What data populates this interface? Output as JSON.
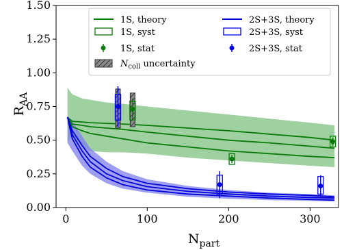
{
  "chart_data": {
    "type": "line",
    "xlabel": "N",
    "xlabel_sub": "part",
    "ylabel": "R",
    "ylabel_sub": "AA",
    "xlim": [
      -12,
      335
    ],
    "ylim": [
      0.0,
      1.5
    ],
    "xticks": [
      0,
      100,
      200,
      300
    ],
    "xtick_labels": [
      "0",
      "100",
      "200",
      "300"
    ],
    "yticks": [
      0.0,
      0.25,
      0.5,
      0.75,
      1.0,
      1.25,
      1.5
    ],
    "ytick_labels": [
      "0.00",
      "0.25",
      "0.50",
      "0.75",
      "1.00",
      "1.25",
      "1.50"
    ],
    "grid": false,
    "legend_position": "top-right",
    "legend": [
      {
        "label": "1S, theory",
        "kind": "line",
        "color": "#087a08"
      },
      {
        "label": "2S+3S, theory",
        "kind": "line",
        "color": "#0000dd"
      },
      {
        "label": "1S, syst",
        "kind": "box",
        "color": "#087a08"
      },
      {
        "label": "2S+3S, syst",
        "kind": "box",
        "color": "#0000dd"
      },
      {
        "label": "1S, stat",
        "kind": "point",
        "color": "#087a08"
      },
      {
        "label": "2S+3S, stat",
        "kind": "point",
        "color": "#0000dd"
      },
      {
        "label": "N",
        "label_sub": "coll",
        "label_tail": " uncertainty",
        "kind": "hatch",
        "color": "#555555"
      }
    ],
    "colors": {
      "green": "#087a08",
      "green_band": "#7fc07f",
      "blue": "#0000dd",
      "blue_band": "#7f7fee",
      "hatch": "#555555"
    },
    "theory": {
      "x": [
        2,
        8,
        20,
        30,
        50,
        70,
        100,
        150,
        200,
        250,
        300,
        330
      ],
      "1S": {
        "upper": [
          0.89,
          0.84,
          0.81,
          0.8,
          0.78,
          0.77,
          0.75,
          0.72,
          0.69,
          0.66,
          0.63,
          0.61
        ],
        "lower": [
          0.49,
          0.53,
          0.45,
          0.42,
          0.41,
          0.41,
          0.4,
          0.37,
          0.35,
          0.33,
          0.31,
          0.3
        ],
        "lines": [
          [
            0.67,
            0.64,
            0.635,
            0.63,
            0.625,
            0.62,
            0.61,
            0.59,
            0.57,
            0.545,
            0.52,
            0.5
          ],
          [
            0.67,
            0.62,
            0.61,
            0.6,
            0.59,
            0.58,
            0.56,
            0.53,
            0.5,
            0.48,
            0.455,
            0.44
          ],
          [
            0.67,
            0.6,
            0.57,
            0.55,
            0.53,
            0.51,
            0.48,
            0.45,
            0.42,
            0.4,
            0.38,
            0.37
          ]
        ]
      },
      "2S3S": {
        "upper": [
          0.68,
          0.64,
          0.53,
          0.44,
          0.34,
          0.27,
          0.21,
          0.16,
          0.13,
          0.11,
          0.1,
          0.09
        ],
        "lower": [
          0.48,
          0.42,
          0.31,
          0.25,
          0.18,
          0.14,
          0.11,
          0.08,
          0.065,
          0.055,
          0.05,
          0.045
        ],
        "lines": [
          [
            0.67,
            0.57,
            0.46,
            0.38,
            0.29,
            0.23,
            0.18,
            0.14,
            0.115,
            0.1,
            0.09,
            0.08
          ],
          [
            0.67,
            0.54,
            0.42,
            0.34,
            0.25,
            0.2,
            0.155,
            0.12,
            0.1,
            0.085,
            0.075,
            0.07
          ],
          [
            0.67,
            0.51,
            0.38,
            0.3,
            0.22,
            0.17,
            0.13,
            0.1,
            0.085,
            0.07,
            0.06,
            0.055
          ]
        ]
      }
    },
    "measurements": {
      "1S": [
        {
          "x": 82,
          "y": 0.73,
          "stat": 0.08,
          "syst_lo": 0.65,
          "syst_hi": 0.79,
          "ncoll_lo": 0.6,
          "ncoll_hi": 0.85
        },
        {
          "x": 204,
          "y": 0.36,
          "stat": 0.03,
          "syst_lo": 0.32,
          "syst_hi": 0.4
        },
        {
          "x": 328,
          "y": 0.49,
          "stat": 0.03,
          "syst_lo": 0.45,
          "syst_hi": 0.53
        }
      ],
      "2S3S": [
        {
          "x": 64,
          "y": 0.75,
          "stat": 0.15,
          "syst_lo": 0.65,
          "syst_hi": 0.84,
          "ncoll_lo": 0.59,
          "ncoll_hi": 0.88
        },
        {
          "x": 189,
          "y": 0.17,
          "stat": 0.1,
          "syst_lo": 0.1,
          "syst_hi": 0.24
        },
        {
          "x": 313,
          "y": 0.16,
          "stat": 0.08,
          "syst_lo": 0.1,
          "syst_hi": 0.23
        }
      ]
    }
  }
}
